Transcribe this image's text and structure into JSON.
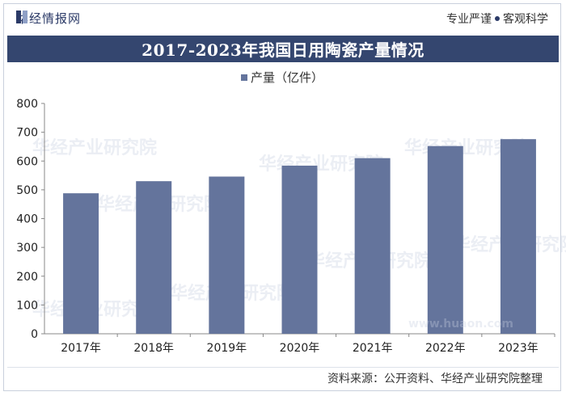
{
  "brand": {
    "logo_text": "华经情报网",
    "tagline_left": "专业严谨",
    "tagline_right": "客观科学"
  },
  "watermark": {
    "text": "华经产业研究院",
    "url": "www.huaon.com"
  },
  "chart_data": {
    "type": "bar",
    "title": "2017-2023年我国日用陶瓷产量情况",
    "legend": "产量（亿件）",
    "legend_position": "top",
    "categories": [
      "2017年",
      "2018年",
      "2019年",
      "2020年",
      "2021年",
      "2022年",
      "2023年"
    ],
    "series": [
      {
        "name": "产量（亿件）",
        "values": [
          488,
          530,
          546,
          584,
          610,
          652,
          676
        ]
      }
    ],
    "ylim": [
      0,
      800
    ],
    "yticks": [
      "0",
      "100",
      "200",
      "300",
      "400",
      "500",
      "600",
      "700",
      "800"
    ],
    "xlabel": "",
    "ylabel": "",
    "bar_color": "#64749c"
  },
  "source": {
    "text": "资料来源：公开资料、华经产业研究院整理"
  }
}
